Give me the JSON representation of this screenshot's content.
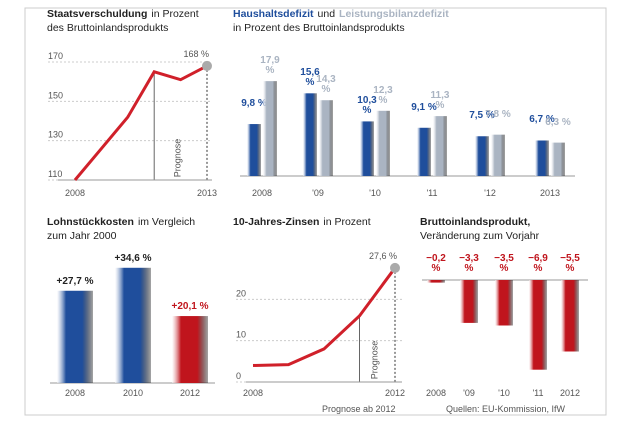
{
  "chart_data": [
    {
      "type": "line",
      "title": "Staatsverschuldung",
      "title_suffix": "in Prozent",
      "subtitle": "des Bruttoinlandsprodukts",
      "categories": [
        "2008",
        null,
        null,
        null,
        null,
        "2013"
      ],
      "values": [
        110,
        126,
        142,
        165,
        161,
        168
      ],
      "value_labels": [
        null,
        null,
        null,
        null,
        null,
        "168 %"
      ],
      "color": "#d0202a",
      "ylim": [
        110,
        170
      ],
      "yticks": [
        110,
        130,
        150,
        170
      ],
      "grid": true,
      "annotation": "Prognose"
    },
    {
      "type": "bar",
      "title_connector": "und",
      "subtitle": "in Prozent des Bruttoinlandsprodukts",
      "categories": [
        "2008",
        "'09",
        "'10",
        "'11",
        "'12",
        "2013"
      ],
      "series": [
        {
          "name": "Haushaltsdefizit",
          "color": "#1f4e9c",
          "values": [
            9.8,
            15.6,
            10.3,
            9.1,
            7.5,
            6.7
          ],
          "value_labels": [
            "9,8 %",
            "15,6 %",
            "10,3 %",
            "9,1 %",
            "7,5 %",
            "6,7 %"
          ]
        },
        {
          "name": "Leistungsbilanzdefizit",
          "color": "#aab4c2",
          "values": [
            17.9,
            14.3,
            12.3,
            11.3,
            7.8,
            6.3
          ],
          "value_labels": [
            "17,9 %",
            "14,3 %",
            "12,3 %",
            "11,3 %",
            "7,8 %",
            "6,3 %"
          ]
        }
      ]
    },
    {
      "type": "bar",
      "title": "Lohnstückkosten",
      "title_suffix": "im Vergleich",
      "subtitle": "zum Jahr 2000",
      "categories": [
        "2008",
        "2010",
        "2012"
      ],
      "values": [
        27.7,
        34.6,
        20.1
      ],
      "value_labels": [
        "+27,7 %",
        "+34,6 %",
        "+20,1 %"
      ],
      "colors": [
        "#1f4e9c",
        "#1f4e9c",
        "#c0151d"
      ]
    },
    {
      "type": "line",
      "title": "10-Jahres-Zinsen",
      "title_suffix": "in Prozent",
      "categories": [
        "2008",
        null,
        null,
        null,
        "2012"
      ],
      "values": [
        4.0,
        4.2,
        8.0,
        16.0,
        27.6
      ],
      "value_labels": [
        null,
        null,
        null,
        null,
        "27,6 %"
      ],
      "color": "#d0202a",
      "ylim": [
        0,
        30
      ],
      "yticks": [
        0,
        10,
        20
      ],
      "grid": true,
      "annotation": "Prognose",
      "note": "Prognose ab 2012"
    },
    {
      "type": "bar",
      "title": "Bruttoinlandsprodukt,",
      "subtitle": "Veränderung zum Vorjahr",
      "categories": [
        "2008",
        "'09",
        "'10",
        "'11",
        "2012"
      ],
      "values": [
        -0.2,
        -3.3,
        -3.5,
        -6.9,
        -5.5
      ],
      "value_labels": [
        "−0,2 %",
        "−3,3 %",
        "−3,5 %",
        "−6,9 %",
        "−5,5 %"
      ],
      "colors": [
        "#c0151d",
        "#c0151d",
        "#c0151d",
        "#c0151d",
        "#c0151d"
      ]
    }
  ],
  "source": "Quellen: EU-Kommission, IfW"
}
